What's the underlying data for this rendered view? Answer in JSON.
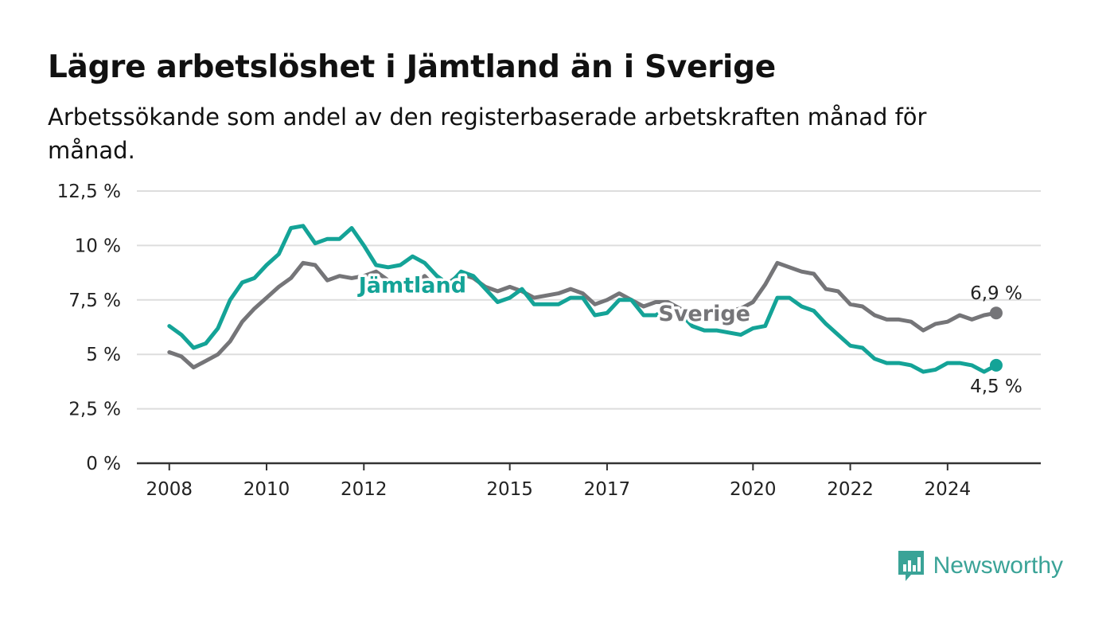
{
  "title": "Lägre arbetslöshet i Jämtland än i Sverige",
  "subtitle": "Arbetssökande som andel av den registerbaserade arbetskraften månad för månad.",
  "brand": {
    "name": "Newsworthy",
    "icon": "newsworthy-chart-bubble-icon",
    "color": "#3aa397"
  },
  "colors": {
    "jamtland": "#14a397",
    "sverige": "#757578",
    "grid": "#dddddd",
    "axis": "#333333"
  },
  "chart_data": {
    "type": "line",
    "ylim": [
      0,
      12.5
    ],
    "yticks": [
      0,
      2.5,
      5,
      7.5,
      10,
      12.5
    ],
    "ytick_labels": [
      "0 %",
      "2,5 %",
      "5 %",
      "7,5 %",
      "10 %",
      "12,5 %"
    ],
    "xlim": [
      "2007-05",
      "2025-12"
    ],
    "xticks": [
      "2008-01",
      "2010-01",
      "2012-01",
      "2015-01",
      "2017-01",
      "2020-01",
      "2022-01",
      "2024-01"
    ],
    "xtick_labels": [
      "2008",
      "2010",
      "2012",
      "2015",
      "2017",
      "2020",
      "2022",
      "2024"
    ],
    "grid": true,
    "series": [
      {
        "name": "Sverige",
        "color": "#757578",
        "end_label": "6,9 %",
        "points": [
          [
            "2008-01",
            5.1
          ],
          [
            "2008-04",
            4.9
          ],
          [
            "2008-07",
            4.4
          ],
          [
            "2008-10",
            4.7
          ],
          [
            "2009-01",
            5.0
          ],
          [
            "2009-04",
            5.6
          ],
          [
            "2009-07",
            6.5
          ],
          [
            "2009-10",
            7.1
          ],
          [
            "2010-01",
            7.6
          ],
          [
            "2010-04",
            8.1
          ],
          [
            "2010-07",
            8.5
          ],
          [
            "2010-10",
            9.2
          ],
          [
            "2011-01",
            9.1
          ],
          [
            "2011-04",
            8.4
          ],
          [
            "2011-07",
            8.6
          ],
          [
            "2011-10",
            8.5
          ],
          [
            "2012-01",
            8.6
          ],
          [
            "2012-04",
            8.8
          ],
          [
            "2012-07",
            8.4
          ],
          [
            "2012-10",
            7.8
          ],
          [
            "2013-01",
            8.1
          ],
          [
            "2013-04",
            8.6
          ],
          [
            "2013-07",
            8.0
          ],
          [
            "2013-10",
            8.3
          ],
          [
            "2014-01",
            8.7
          ],
          [
            "2014-04",
            8.5
          ],
          [
            "2014-07",
            8.1
          ],
          [
            "2014-10",
            7.9
          ],
          [
            "2015-01",
            8.1
          ],
          [
            "2015-04",
            7.9
          ],
          [
            "2015-07",
            7.6
          ],
          [
            "2015-10",
            7.7
          ],
          [
            "2016-01",
            7.8
          ],
          [
            "2016-04",
            8.0
          ],
          [
            "2016-07",
            7.8
          ],
          [
            "2016-10",
            7.3
          ],
          [
            "2017-01",
            7.5
          ],
          [
            "2017-04",
            7.8
          ],
          [
            "2017-07",
            7.5
          ],
          [
            "2017-10",
            7.2
          ],
          [
            "2018-01",
            7.4
          ],
          [
            "2018-04",
            7.4
          ],
          [
            "2018-07",
            7.1
          ],
          [
            "2018-10",
            6.8
          ],
          [
            "2019-01",
            6.9
          ],
          [
            "2019-04",
            7.0
          ],
          [
            "2019-07",
            7.0
          ],
          [
            "2019-10",
            7.1
          ],
          [
            "2020-01",
            7.4
          ],
          [
            "2020-04",
            8.2
          ],
          [
            "2020-07",
            9.2
          ],
          [
            "2020-10",
            9.0
          ],
          [
            "2021-01",
            8.8
          ],
          [
            "2021-04",
            8.7
          ],
          [
            "2021-07",
            8.0
          ],
          [
            "2021-10",
            7.9
          ],
          [
            "2022-01",
            7.3
          ],
          [
            "2022-04",
            7.2
          ],
          [
            "2022-07",
            6.8
          ],
          [
            "2022-10",
            6.6
          ],
          [
            "2023-01",
            6.6
          ],
          [
            "2023-04",
            6.5
          ],
          [
            "2023-07",
            6.1
          ],
          [
            "2023-10",
            6.4
          ],
          [
            "2024-01",
            6.5
          ],
          [
            "2024-04",
            6.8
          ],
          [
            "2024-07",
            6.6
          ],
          [
            "2024-10",
            6.8
          ],
          [
            "2025-01",
            6.9
          ]
        ]
      },
      {
        "name": "Jämtland",
        "color": "#14a397",
        "end_label": "4,5 %",
        "points": [
          [
            "2008-01",
            6.3
          ],
          [
            "2008-04",
            5.9
          ],
          [
            "2008-07",
            5.3
          ],
          [
            "2008-10",
            5.5
          ],
          [
            "2009-01",
            6.2
          ],
          [
            "2009-04",
            7.5
          ],
          [
            "2009-07",
            8.3
          ],
          [
            "2009-10",
            8.5
          ],
          [
            "2010-01",
            9.1
          ],
          [
            "2010-04",
            9.6
          ],
          [
            "2010-07",
            10.8
          ],
          [
            "2010-10",
            10.9
          ],
          [
            "2011-01",
            10.1
          ],
          [
            "2011-04",
            10.3
          ],
          [
            "2011-07",
            10.3
          ],
          [
            "2011-10",
            10.8
          ],
          [
            "2012-01",
            10.0
          ],
          [
            "2012-04",
            9.1
          ],
          [
            "2012-07",
            9.0
          ],
          [
            "2012-10",
            9.1
          ],
          [
            "2013-01",
            9.5
          ],
          [
            "2013-04",
            9.2
          ],
          [
            "2013-07",
            8.6
          ],
          [
            "2013-10",
            8.2
          ],
          [
            "2014-01",
            8.8
          ],
          [
            "2014-04",
            8.6
          ],
          [
            "2014-07",
            8.0
          ],
          [
            "2014-10",
            7.4
          ],
          [
            "2015-01",
            7.6
          ],
          [
            "2015-04",
            8.0
          ],
          [
            "2015-07",
            7.3
          ],
          [
            "2015-10",
            7.3
          ],
          [
            "2016-01",
            7.3
          ],
          [
            "2016-04",
            7.6
          ],
          [
            "2016-07",
            7.6
          ],
          [
            "2016-10",
            6.8
          ],
          [
            "2017-01",
            6.9
          ],
          [
            "2017-04",
            7.5
          ],
          [
            "2017-07",
            7.5
          ],
          [
            "2017-10",
            6.8
          ],
          [
            "2018-01",
            6.8
          ],
          [
            "2018-04",
            7.1
          ],
          [
            "2018-07",
            6.9
          ],
          [
            "2018-10",
            6.3
          ],
          [
            "2019-01",
            6.1
          ],
          [
            "2019-04",
            6.1
          ],
          [
            "2019-07",
            6.0
          ],
          [
            "2019-10",
            5.9
          ],
          [
            "2020-01",
            6.2
          ],
          [
            "2020-04",
            6.3
          ],
          [
            "2020-07",
            7.6
          ],
          [
            "2020-10",
            7.6
          ],
          [
            "2021-01",
            7.2
          ],
          [
            "2021-04",
            7.0
          ],
          [
            "2021-07",
            6.4
          ],
          [
            "2021-10",
            5.9
          ],
          [
            "2022-01",
            5.4
          ],
          [
            "2022-04",
            5.3
          ],
          [
            "2022-07",
            4.8
          ],
          [
            "2022-10",
            4.6
          ],
          [
            "2023-01",
            4.6
          ],
          [
            "2023-04",
            4.5
          ],
          [
            "2023-07",
            4.2
          ],
          [
            "2023-10",
            4.3
          ],
          [
            "2024-01",
            4.6
          ],
          [
            "2024-04",
            4.6
          ],
          [
            "2024-07",
            4.5
          ],
          [
            "2024-10",
            4.2
          ],
          [
            "2025-01",
            4.5
          ]
        ]
      }
    ],
    "annotations": [
      {
        "text": "Jämtland",
        "series": "Jämtland",
        "anchor": "2013-01",
        "value": 8.2
      },
      {
        "text": "Sverige",
        "series": "Sverige",
        "anchor": "2019-01",
        "value": 6.9
      }
    ]
  }
}
